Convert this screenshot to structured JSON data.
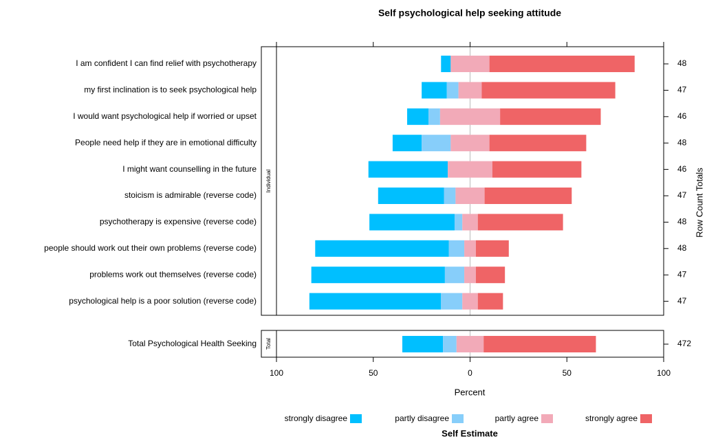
{
  "chart_data": {
    "type": "likert",
    "title": "Self psychological help seeking attitude",
    "xlabel": "Percent",
    "y2label": "Row Count Totals",
    "legend_title": "Self Estimate",
    "xlim": [
      -100,
      100
    ],
    "xticks": [
      {
        "value": -100,
        "label": "100"
      },
      {
        "value": -50,
        "label": "50"
      },
      0,
      50,
      100
    ],
    "series": [
      {
        "name": "strongly disagree",
        "color": "#00bfff"
      },
      {
        "name": "partly disagree",
        "color": "#87cefa"
      },
      {
        "name": "partly agree",
        "color": "#f2aab8"
      },
      {
        "name": "strongly agree",
        "color": "#ef6466"
      }
    ],
    "panels": [
      {
        "strip": "Individual",
        "categories": [
          "I am confident I can find relief with psychotherapy",
          "my first inclination is to seek psychological help",
          "I would want psychological help if worried or upset",
          "People need help if they are in emotional difficulty",
          "I might want counselling in the future",
          "stoicism is admirable (reverse code)",
          "psychotherapy is expensive (reverse code)",
          "people should work out their own problems (reverse code)",
          "problems work out themselves (reverse code)",
          "psychological help is a poor solution (reverse code)"
        ],
        "counts": [
          48,
          47,
          46,
          48,
          46,
          47,
          48,
          48,
          47,
          47
        ],
        "values": [
          [
            5,
            13,
            11,
            15,
            41,
            34,
            44,
            69,
            69,
            68
          ],
          [
            0,
            6,
            6,
            15,
            0,
            6,
            4,
            8,
            10,
            11
          ],
          [
            20,
            12,
            31,
            20,
            23,
            15,
            8,
            6,
            6,
            8
          ],
          [
            75,
            69,
            52,
            50,
            46,
            45,
            44,
            17,
            15,
            13
          ]
        ]
      },
      {
        "strip": "Total",
        "categories": [
          "Total Psychological Health Seeking"
        ],
        "counts": [
          472
        ],
        "values": [
          [
            21
          ],
          [
            7
          ],
          [
            14
          ],
          [
            58
          ]
        ]
      }
    ]
  }
}
